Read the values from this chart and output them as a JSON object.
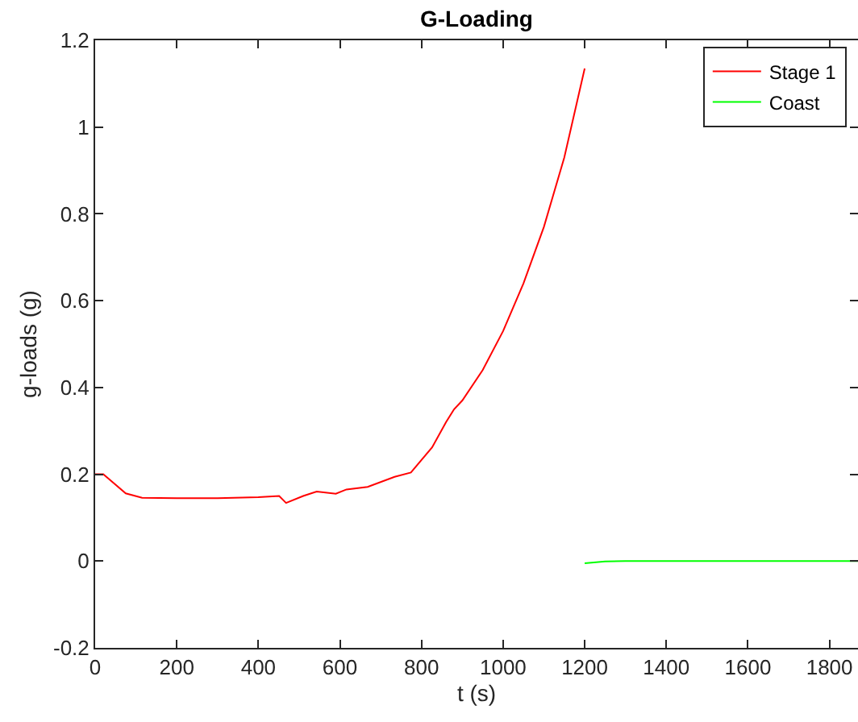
{
  "chart_data": {
    "type": "line",
    "title": "G-Loading",
    "xlabel": "t (s)",
    "ylabel": "g-loads (g)",
    "xlim": [
      0,
      1870
    ],
    "xticks": [
      0,
      200,
      400,
      600,
      800,
      1000,
      1200,
      1400,
      1600,
      1800
    ],
    "ylim": [
      -0.2,
      1.2
    ],
    "yticks": [
      -0.2,
      0,
      0.2,
      0.4,
      0.6,
      0.8,
      1,
      1.2
    ],
    "legend": "top right",
    "marker": "none",
    "line_style": "solid",
    "series": [
      {
        "name": "Stage 1",
        "color": "#ff0000",
        "x": [
          0,
          20,
          75,
          115,
          200,
          300,
          400,
          451,
          468,
          510,
          543,
          590,
          616,
          668,
          734,
          774,
          826,
          860,
          880,
          900,
          950,
          1000,
          1050,
          1100,
          1150,
          1200
        ],
        "values": [
          0.2,
          0.2,
          0.156,
          0.146,
          0.145,
          0.145,
          0.147,
          0.15,
          0.134,
          0.15,
          0.16,
          0.155,
          0.165,
          0.171,
          0.194,
          0.204,
          0.262,
          0.32,
          0.35,
          0.37,
          0.44,
          0.53,
          0.64,
          0.77,
          0.93,
          1.135
        ]
      },
      {
        "name": "Coast",
        "color": "#00ff00",
        "x": [
          1200,
          1250,
          1300,
          1870
        ],
        "values": [
          -0.005,
          -0.001,
          0,
          0
        ]
      }
    ]
  }
}
